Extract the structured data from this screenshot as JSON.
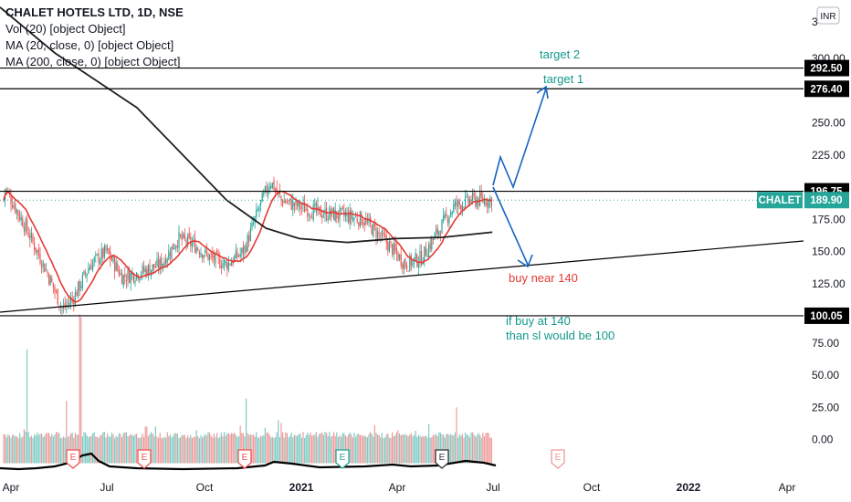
{
  "chart_data": {
    "type": "candlestick",
    "title": "CHALET HOTELS LTD, 1D, NSE",
    "currency": "INR",
    "symbol": "CHALET",
    "last_price": "189.90",
    "indicators": [
      "Vol (20) [object Object]",
      "MA (20, close, 0) [object Object]",
      "MA (200, close, 0) [object Object]"
    ],
    "price_axis": {
      "ticks": [
        "300.00",
        "275.00",
        "250.00",
        "225.00",
        "175.00",
        "150.00",
        "125.00",
        "75.00",
        "50.00",
        "25.00",
        "0.00"
      ],
      "partial_top": "3"
    },
    "x_axis": {
      "ticks": [
        "Apr",
        "Jul",
        "Oct",
        "2021",
        "Apr",
        "Jul",
        "Oct",
        "2022",
        "Apr"
      ]
    },
    "price_lines": [
      {
        "label": "292.50",
        "value": 292.5
      },
      {
        "label": "276.40",
        "value": 276.4
      },
      {
        "label": "196.75",
        "value": 196.75
      },
      {
        "label": "100.05",
        "value": 100.05
      }
    ],
    "annotations": {
      "target2": "target 2",
      "target1": "target 1",
      "buy_near": "buy near 140",
      "note_line1": "if buy at 140",
      "note_line2": "than sl would be 100"
    },
    "price_series_approx": [
      [
        "2020-04-01",
        200
      ],
      [
        "2020-04-20",
        170
      ],
      [
        "2020-05-10",
        135
      ],
      [
        "2020-05-25",
        105
      ],
      [
        "2020-06-05",
        115
      ],
      [
        "2020-06-20",
        140
      ],
      [
        "2020-07-05",
        150
      ],
      [
        "2020-07-20",
        130
      ],
      [
        "2020-08-10",
        135
      ],
      [
        "2020-08-25",
        140
      ],
      [
        "2020-09-10",
        160
      ],
      [
        "2020-09-25",
        155
      ],
      [
        "2020-10-10",
        145
      ],
      [
        "2020-10-25",
        140
      ],
      [
        "2020-11-10",
        150
      ],
      [
        "2020-11-25",
        185
      ],
      [
        "2020-12-05",
        205
      ],
      [
        "2020-12-15",
        190
      ],
      [
        "2020-12-31",
        185
      ],
      [
        "2021-01-20",
        180
      ],
      [
        "2021-02-10",
        178
      ],
      [
        "2021-03-01",
        175
      ],
      [
        "2021-03-20",
        160
      ],
      [
        "2021-04-10",
        140
      ],
      [
        "2021-04-25",
        145
      ],
      [
        "2021-05-10",
        165
      ],
      [
        "2021-05-25",
        185
      ],
      [
        "2021-06-10",
        190
      ],
      [
        "2021-06-30",
        189.9
      ]
    ],
    "ma200_approx": [
      [
        "2020-10-25",
        190
      ],
      [
        "2020-12-01",
        168
      ],
      [
        "2021-01-01",
        160
      ],
      [
        "2021-02-15",
        157
      ],
      [
        "2021-04-01",
        160
      ],
      [
        "2021-05-15",
        161
      ],
      [
        "2021-06-30",
        165
      ]
    ],
    "colors": {
      "up": "#26a69a",
      "down": "#ef5350",
      "ma20": "#e53935",
      "ma200": "#1e1e1e",
      "arrow": "#1565c0",
      "target": "#13998a",
      "buy": "#e53935",
      "note": "#13998a",
      "badge": "#26a69a"
    },
    "earnings_marker": "E"
  }
}
